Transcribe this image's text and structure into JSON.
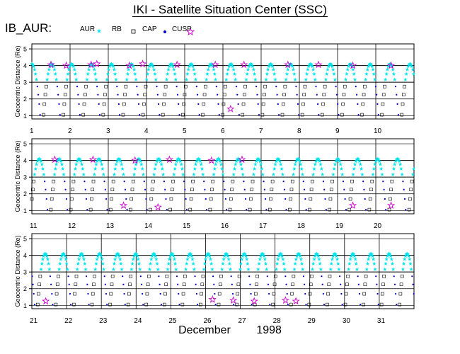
{
  "header": {
    "title": "IKI - Satellite Situation Center (SSC)",
    "satellite": "IB_AUR:"
  },
  "legend": [
    {
      "label": "AUR",
      "marker": "cyan-star",
      "color": "#00e5ee"
    },
    {
      "label": "RB",
      "marker": "open-square",
      "color": "#000000"
    },
    {
      "label": "CAP",
      "marker": "blue-dot",
      "color": "#0000cc"
    },
    {
      "label": "CUSP",
      "marker": "magenta-open-star",
      "color": "#cc00cc"
    }
  ],
  "footer": {
    "month": "December",
    "year": "1998"
  },
  "chart_data": {
    "type": "scatter",
    "ylabel": "Geocentric Distance (Re)",
    "ylim": [
      0.8,
      5.3
    ],
    "yticks": [
      1,
      2,
      3,
      4,
      5
    ],
    "grid": true,
    "orbit_period_hours": 12.5,
    "apogee_re": 4.1,
    "panels": [
      {
        "days": [
          1,
          2,
          3,
          4,
          5,
          6,
          7,
          8,
          9,
          10
        ],
        "day_labels": [
          "1",
          "2",
          "3",
          "4",
          "5",
          "6",
          "7",
          "8",
          "9",
          "10"
        ],
        "cusp_events": [
          [
            1.5,
            4.05
          ],
          [
            1.9,
            4.0
          ],
          [
            2.55,
            4.05
          ],
          [
            2.7,
            4.1
          ],
          [
            3.55,
            4.0
          ],
          [
            3.9,
            4.1
          ],
          [
            4.8,
            4.05
          ],
          [
            5.8,
            4.05
          ],
          [
            6.2,
            1.4
          ],
          [
            6.55,
            4.05
          ],
          [
            7.7,
            4.05
          ],
          [
            8.5,
            4.05
          ],
          [
            9.4,
            4.0
          ],
          [
            10.4,
            4.0
          ]
        ]
      },
      {
        "days": [
          11,
          12,
          13,
          14,
          15,
          16,
          17,
          18,
          19,
          20
        ],
        "day_labels": [
          "11",
          "12",
          "13",
          "14",
          "15",
          "16",
          "17",
          "18",
          "19",
          "20"
        ],
        "cusp_events": [
          [
            11.6,
            4.05
          ],
          [
            12.6,
            4.05
          ],
          [
            13.4,
            1.3
          ],
          [
            13.7,
            4.0
          ],
          [
            14.3,
            1.2
          ],
          [
            14.6,
            4.05
          ],
          [
            15.7,
            4.0
          ],
          [
            16.5,
            4.05
          ],
          [
            19.4,
            1.3
          ],
          [
            20.4,
            1.3
          ]
        ]
      },
      {
        "days": [
          21,
          22,
          23,
          24,
          25,
          26,
          27,
          28,
          29,
          30,
          31
        ],
        "day_labels": [
          "21",
          "22",
          "23",
          "24",
          "25",
          "26",
          "27",
          "28",
          "29",
          "30",
          "31"
        ],
        "cusp_events": [
          [
            21.4,
            1.25
          ],
          [
            26.2,
            1.35
          ],
          [
            26.8,
            1.3
          ],
          [
            27.4,
            1.25
          ],
          [
            28.3,
            1.3
          ],
          [
            28.6,
            1.25
          ]
        ]
      }
    ]
  }
}
